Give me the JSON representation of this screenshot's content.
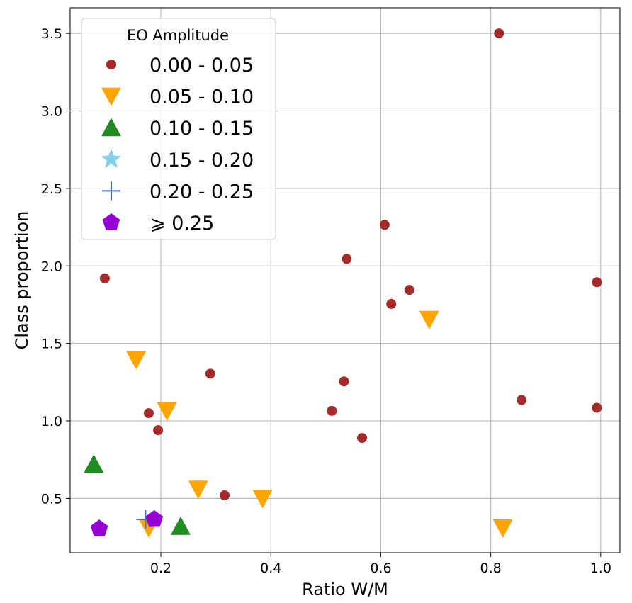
{
  "chart_data": {
    "type": "scatter",
    "title": "",
    "xlabel": "Ratio W/M",
    "ylabel": "Class proportion",
    "xlim": [
      0.035,
      1.035
    ],
    "ylim": [
      0.15,
      3.665
    ],
    "xticks": [
      "0.2",
      "0.4",
      "0.6",
      "0.8",
      "1.0"
    ],
    "xtick_values": [
      0.2,
      0.4,
      0.6,
      0.8,
      1.0
    ],
    "yticks": [
      "0.5",
      "1.0",
      "1.5",
      "2.0",
      "2.5",
      "3.0",
      "3.5"
    ],
    "ytick_values": [
      0.5,
      1.0,
      1.5,
      2.0,
      2.5,
      3.0,
      3.5
    ],
    "grid": true,
    "legend_title": "EO Amplitude",
    "legend_position": "upper-left",
    "series": [
      {
        "name": "0.00 - 0.05",
        "marker": "circle",
        "color": "#a52a2a",
        "points": [
          [
            0.815,
            3.5
          ],
          [
            0.098,
            1.92
          ],
          [
            0.607,
            2.265
          ],
          [
            0.538,
            2.045
          ],
          [
            0.993,
            1.895
          ],
          [
            0.652,
            1.845
          ],
          [
            0.619,
            1.755
          ],
          [
            0.29,
            1.305
          ],
          [
            0.533,
            1.255
          ],
          [
            0.856,
            1.135
          ],
          [
            0.993,
            1.085
          ],
          [
            0.178,
            1.05
          ],
          [
            0.511,
            1.065
          ],
          [
            0.195,
            0.94
          ],
          [
            0.566,
            0.89
          ],
          [
            0.316,
            0.52
          ]
        ]
      },
      {
        "name": "0.05 - 0.10",
        "marker": "triangle-down",
        "color": "#ffa500",
        "points": [
          [
            0.688,
            1.655
          ],
          [
            0.155,
            1.395
          ],
          [
            0.211,
            1.065
          ],
          [
            0.268,
            0.56
          ],
          [
            0.385,
            0.5
          ],
          [
            0.822,
            0.31
          ],
          [
            0.178,
            0.31
          ]
        ]
      },
      {
        "name": "0.10 - 0.15",
        "marker": "triangle-up",
        "color": "#228b22",
        "points": [
          [
            0.078,
            0.72
          ],
          [
            0.236,
            0.32
          ]
        ]
      },
      {
        "name": "0.15 - 0.20",
        "marker": "star",
        "color": "#87ceeb",
        "points": []
      },
      {
        "name": "0.20 - 0.25",
        "marker": "plus",
        "color": "#4169e1",
        "points": [
          [
            0.172,
            0.365
          ]
        ]
      },
      {
        "name": "⩾ 0.25",
        "marker": "pentagon",
        "color": "#9400d3",
        "points": [
          [
            0.088,
            0.305
          ],
          [
            0.188,
            0.365
          ]
        ]
      }
    ]
  }
}
